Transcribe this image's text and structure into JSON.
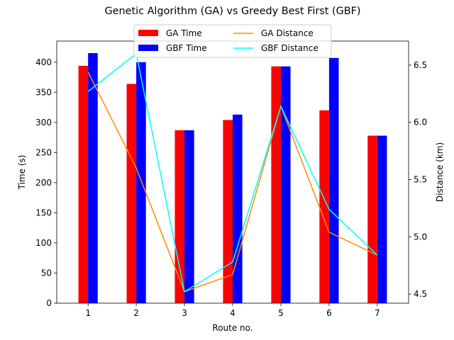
{
  "chart_data": {
    "type": "bar+line",
    "title": "Genetic Algorithm (GA) vs Greedy Best First (GBF)",
    "xlabel": "Route no.",
    "ylabel_left": "Time (s)",
    "ylabel_right": "Distance (km)",
    "categories": [
      "1",
      "2",
      "3",
      "4",
      "5",
      "6",
      "7"
    ],
    "ylim_left": [
      0,
      435
    ],
    "ylim_right": [
      4.42,
      6.71
    ],
    "yticks_left": [
      0,
      50,
      100,
      150,
      200,
      250,
      300,
      350,
      400
    ],
    "yticks_right": [
      "4.5",
      "5.0",
      "5.5",
      "6.0",
      "6.5"
    ],
    "yticks_right_values": [
      4.5,
      5.0,
      5.5,
      6.0,
      6.5
    ],
    "bar_series": [
      {
        "name": "GA Time",
        "color": "#ff0000",
        "values": [
          394,
          364,
          287,
          304,
          393,
          320,
          278
        ]
      },
      {
        "name": "GBF Time",
        "color": "#0000ff",
        "values": [
          415,
          400,
          287,
          313,
          393,
          407,
          278
        ]
      }
    ],
    "line_series": [
      {
        "name": "GA Distance",
        "color": "#ff8c00",
        "values": [
          6.44,
          5.6,
          4.52,
          4.67,
          6.14,
          5.04,
          4.84
        ]
      },
      {
        "name": "GBF Distance",
        "color": "#00ffff",
        "values": [
          6.27,
          6.6,
          4.52,
          4.78,
          6.14,
          5.24,
          4.84
        ]
      }
    ],
    "legend": {
      "placement": "top-center",
      "columns": 2
    }
  }
}
